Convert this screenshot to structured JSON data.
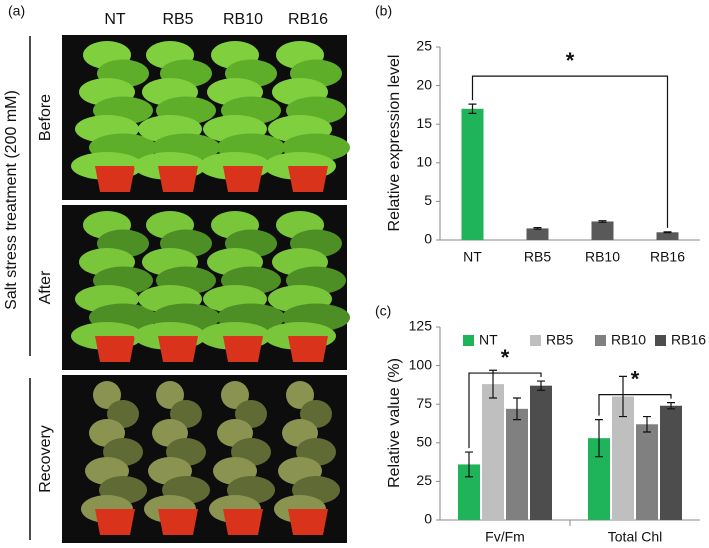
{
  "panel_a": {
    "label": "(a)",
    "columns": [
      "NT",
      "RB5",
      "RB10",
      "RB16"
    ],
    "rows": [
      "Before",
      "After",
      "Recovery"
    ],
    "side_label": "Salt stress treatment (200 mM)"
  },
  "chart_data": [
    {
      "type": "bar",
      "label": "(b)",
      "ylabel": "Relative expression level",
      "categories": [
        "NT",
        "RB5",
        "RB10",
        "RB16"
      ],
      "values": [
        17,
        1.5,
        2.4,
        1.0
      ],
      "errors": [
        0.6,
        0.1,
        0.1,
        0.05
      ],
      "colors": [
        "#1fb45a",
        "#595959",
        "#595959",
        "#595959"
      ],
      "ylim": [
        0,
        25
      ],
      "yticks": [
        0,
        5,
        10,
        15,
        20,
        25
      ],
      "annotations": [
        "*"
      ]
    },
    {
      "type": "grouped_bar",
      "label": "(c)",
      "ylabel": "Relative value (%)",
      "categories": [
        "Fv/Fm",
        "Total Chl"
      ],
      "series": [
        {
          "name": "NT",
          "color": "#1fb45a",
          "values": [
            36,
            53
          ],
          "errors": [
            8,
            12
          ]
        },
        {
          "name": "RB5",
          "color": "#bfbfbf",
          "values": [
            88,
            80
          ],
          "errors": [
            9,
            13
          ]
        },
        {
          "name": "RB10",
          "color": "#808080",
          "values": [
            72,
            62
          ],
          "errors": [
            7,
            5
          ]
        },
        {
          "name": "RB16",
          "color": "#4d4d4d",
          "values": [
            87,
            74
          ],
          "errors": [
            3,
            2
          ]
        }
      ],
      "ylim": [
        0,
        125
      ],
      "yticks": [
        0,
        25,
        50,
        75,
        100,
        125
      ],
      "annotations": [
        "*",
        "*"
      ]
    }
  ]
}
